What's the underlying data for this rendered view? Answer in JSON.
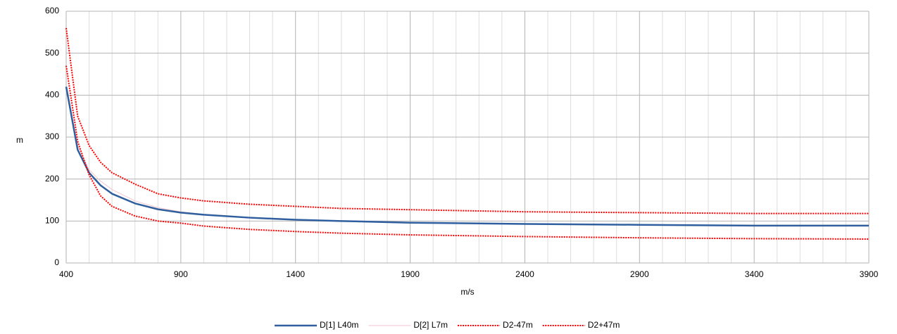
{
  "chart_data": {
    "type": "line",
    "x_label": "m/s",
    "y_label": "m",
    "x": [
      400,
      450,
      500,
      550,
      600,
      700,
      800,
      900,
      1000,
      1200,
      1400,
      1600,
      1900,
      2400,
      2900,
      3400,
      3900
    ],
    "series": [
      {
        "name": "D[1] L40m",
        "color": "#2f5f9e",
        "width": 2.5,
        "dash": "solid",
        "values": [
          420,
          270,
          215,
          185,
          165,
          142,
          128,
          120,
          115,
          108,
          103,
          100,
          96,
          93,
          91,
          89,
          89
        ]
      },
      {
        "name": "D[2] L7m",
        "color": "#f2c6cf",
        "width": 1,
        "dash": "solid",
        "values": [
          410,
          280,
          222,
          195,
          175,
          148,
          132,
          122,
          116,
          109,
          104,
          100,
          96,
          93,
          91,
          89,
          89
        ]
      },
      {
        "name": "D2-47m",
        "color": "#ff0000",
        "width": 2,
        "dash": "dotted",
        "values": [
          470,
          290,
          210,
          160,
          135,
          112,
          100,
          95,
          88,
          80,
          75,
          71,
          67,
          63,
          60,
          58,
          57
        ]
      },
      {
        "name": "D2+47m",
        "color": "#ff0000",
        "width": 2,
        "dash": "dotted",
        "values": [
          560,
          350,
          280,
          240,
          215,
          188,
          165,
          155,
          148,
          140,
          135,
          130,
          127,
          122,
          120,
          118,
          118
        ]
      }
    ],
    "xlim": [
      400,
      3900
    ],
    "xticks": [
      400,
      900,
      1400,
      1900,
      2400,
      2900,
      3400,
      3900
    ],
    "xticks_minor": [
      500,
      600,
      700,
      800,
      1000,
      1100,
      1200,
      1300,
      1500,
      1600,
      1700,
      1800,
      2000,
      2100,
      2200,
      2300,
      2500,
      2600,
      2700,
      2800,
      3000,
      3100,
      3200,
      3300,
      3500,
      3600,
      3700,
      3800
    ],
    "ylim": [
      0,
      600
    ],
    "yticks": [
      0,
      100,
      200,
      300,
      400,
      500,
      600
    ],
    "grid": true,
    "legend": "bottom"
  }
}
